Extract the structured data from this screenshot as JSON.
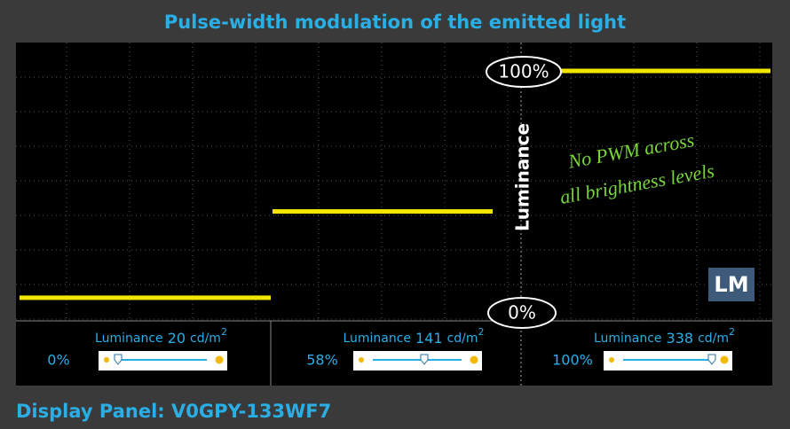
{
  "header": {
    "title": "Pulse-width modulation of the emitted light"
  },
  "axis": {
    "top_label": "100%",
    "bottom_label": "0%",
    "name": "Luminance"
  },
  "annotation": {
    "lines": [
      "No PWM across",
      "all brightness levels"
    ]
  },
  "logo": "LM",
  "panels": [
    {
      "brightness": "0%",
      "brightness_value": 0,
      "luminance": {
        "label": "Luminance",
        "value": 20,
        "unit": "cd/m",
        "unit_sup": "2"
      }
    },
    {
      "brightness": "58%",
      "brightness_value": 58,
      "luminance": {
        "label": "Luminance",
        "value": 141,
        "unit": "cd/m",
        "unit_sup": "2"
      }
    },
    {
      "brightness": "100%",
      "brightness_value": 100,
      "luminance": {
        "label": "Luminance",
        "value": 338,
        "unit": "cd/m",
        "unit_sup": "2"
      }
    }
  ],
  "footer": {
    "text": "Display Panel: V0GPY-133WF7"
  }
}
